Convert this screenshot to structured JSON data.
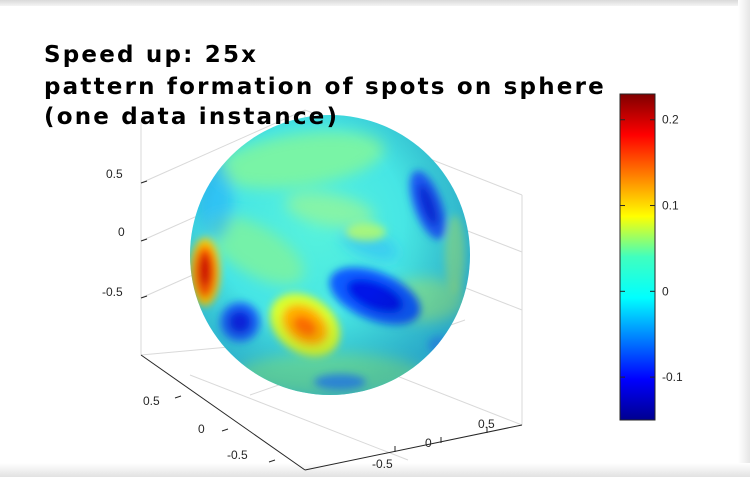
{
  "caption": {
    "line1": "Speed up: 25x",
    "line2": " pattern formation of spots on sphere",
    "line3": "(one data instance)"
  },
  "chart_data": {
    "type": "heatmap",
    "title": "",
    "surface": "sphere",
    "axes": {
      "z_ticks": [
        "0.5",
        "0",
        "-0.5"
      ],
      "y_ticks": [
        "0.5",
        "0",
        "-0.5"
      ],
      "x_ticks": [
        "0.5",
        "0",
        "-0.5"
      ],
      "box": true,
      "grid": true
    },
    "colorbar": {
      "colormap": "jet",
      "range": [
        -0.15,
        0.23
      ],
      "ticks": [
        {
          "value": 0.2,
          "label": "0.2"
        },
        {
          "value": 0.1,
          "label": "0.1"
        },
        {
          "value": 0,
          "label": "0"
        },
        {
          "value": -0.1,
          "label": "-0.1"
        }
      ],
      "placement": "right"
    },
    "spots": [
      {
        "value": 0.22,
        "where": "left edge"
      },
      {
        "value": 0.15,
        "where": "lower center"
      },
      {
        "value": -0.14,
        "where": "center right"
      },
      {
        "value": -0.12,
        "where": "lower left"
      },
      {
        "value": -0.1,
        "where": "upper right"
      },
      {
        "value": 0.06,
        "where": "upper center"
      }
    ]
  }
}
